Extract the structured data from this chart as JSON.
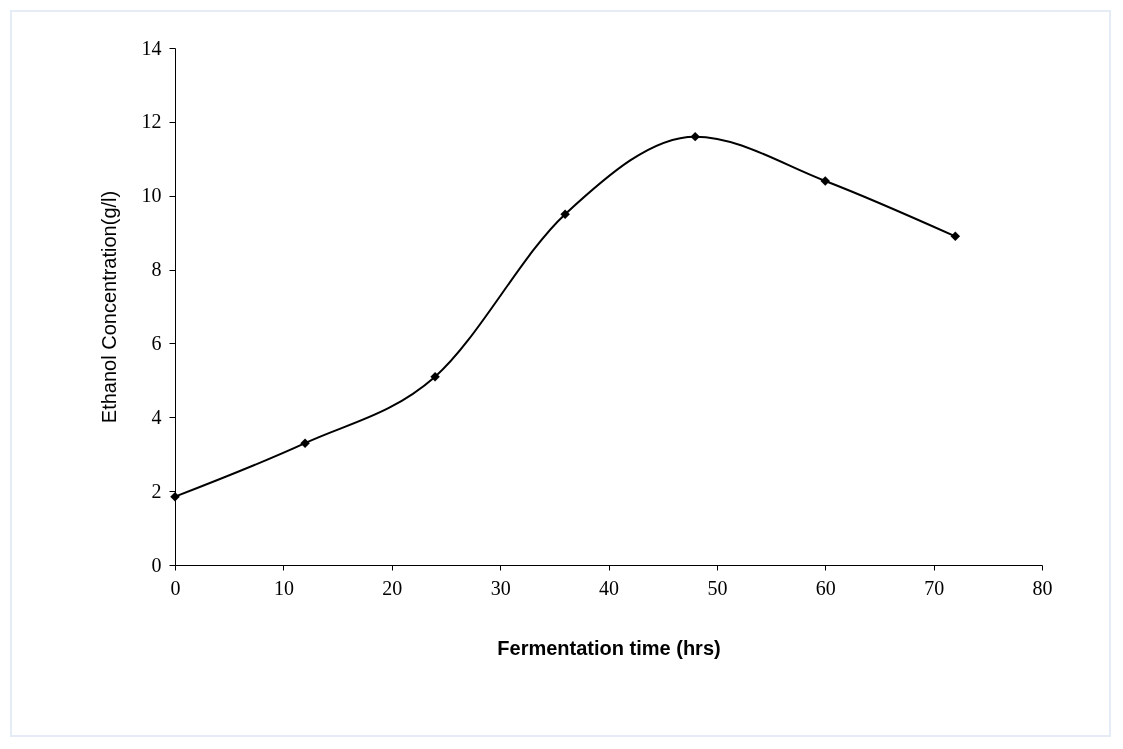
{
  "chart_data": {
    "type": "line",
    "xlabel": "Fermentation time (hrs)",
    "ylabel": "Ethanol Concentration(g/l)",
    "x": [
      0,
      12,
      24,
      36,
      48,
      60,
      72
    ],
    "series": [
      {
        "color": "#000000",
        "values": [
          1.85,
          3.3,
          5.1,
          9.5,
          11.6,
          10.4,
          8.9
        ]
      }
    ],
    "xlim": [
      0,
      80
    ],
    "xticks": [
      0,
      10,
      20,
      30,
      40,
      50,
      60,
      70,
      80
    ],
    "ylim": [
      0,
      14
    ],
    "yticks": [
      0,
      2,
      4,
      6,
      8,
      10,
      12,
      14
    ],
    "marker": "diamond",
    "line_style": "solid",
    "grid": false
  }
}
